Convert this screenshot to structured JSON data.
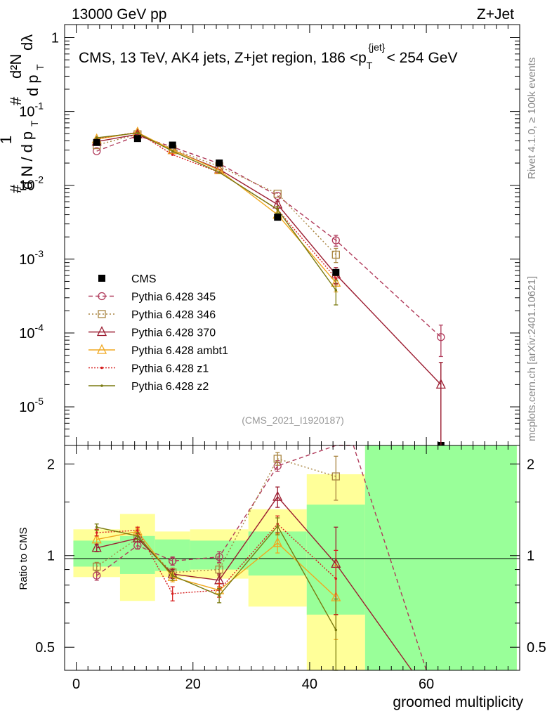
{
  "header": {
    "left_title": "13000 GeV pp",
    "right_title": "Z+Jet",
    "plot_title_main": "CMS, 13 TeV, AK4 jets, Z+jet region, 186 <p",
    "plot_title_sub": "T",
    "plot_title_sup": "{jet}",
    "plot_title_end": "< 254 GeV",
    "side_label_top": "Rivet 4.1.0, ≥ 100k events",
    "side_label_bottom": "mcplots.cern.ch [arXiv:2401.10621]",
    "analysis_id": "(CMS_2021_I1920187)"
  },
  "colors": {
    "cms": "#000000",
    "p345": "#b03a5a",
    "p346": "#a88440",
    "p370": "#9b1c30",
    "ambt1": "#f0a820",
    "z1": "#d62020",
    "z2": "#7a7a10",
    "band_green": "#99ff99",
    "band_yellow": "#ffff99"
  },
  "chart_data": [
    {
      "type": "line",
      "title": "CMS, 13 TeV, AK4 jets, Z+jet region, 186 < pT{jet} < 254 GeV",
      "ylabel": "1/dN/dpT # d²N/dpT dλ",
      "yscale": "log",
      "xlim": [
        -2,
        76
      ],
      "ylim": [
        3e-06,
        1.5
      ],
      "y_ticks": [
        {
          "v": 1e-05,
          "base": "10",
          "exp": "-5"
        },
        {
          "v": 0.0001,
          "base": "10",
          "exp": "-4"
        },
        {
          "v": 0.001,
          "base": "10",
          "exp": "-3"
        },
        {
          "v": 0.01,
          "base": "10",
          "exp": "-2"
        },
        {
          "v": 0.1,
          "base": "10",
          "exp": "-1"
        },
        {
          "v": 1,
          "base": "1",
          "exp": ""
        }
      ],
      "ylabel_parts": {
        "one": "1",
        "dN": "d N / d p",
        "T": "T",
        "hash": "#",
        "d2N": "d²N",
        "dpT": "d p",
        "dlambda": "dλ"
      },
      "cms": {
        "name": "CMS",
        "x": [
          3.5,
          10.5,
          16.5,
          24.5,
          34.5,
          44.5,
          62.5
        ],
        "y": [
          0.038,
          0.043,
          0.035,
          0.02,
          0.0037,
          0.00066,
          2.5e-06
        ]
      },
      "series": [
        {
          "name": "Pythia 6.428 345",
          "key": "p345",
          "marker": "circle",
          "dash": "6,4",
          "x": [
            3.5,
            10.5,
            16.5,
            24.5,
            34.5,
            44.5,
            62.5
          ],
          "y": [
            0.029,
            0.047,
            0.033,
            0.0197,
            0.0072,
            0.0018,
            8.8e-05
          ],
          "err": [
            0,
            0,
            0,
            0,
            0,
            0.0003,
            4e-05
          ]
        },
        {
          "name": "Pythia 6.428 346",
          "key": "p346",
          "marker": "square",
          "dash": "2,3",
          "x": [
            3.5,
            10.5,
            16.5,
            24.5,
            34.5,
            44.5
          ],
          "y": [
            0.035,
            0.049,
            0.031,
            0.018,
            0.0077,
            0.00115
          ],
          "err": [
            0,
            0,
            0,
            0,
            0,
            0.00025
          ]
        },
        {
          "name": "Pythia 6.428 370",
          "key": "p370",
          "marker": "triangle",
          "dash": "",
          "x": [
            3.5,
            10.5,
            16.5,
            24.5,
            34.5,
            44.5,
            62.5
          ],
          "y": [
            0.039,
            0.049,
            0.03,
            0.0165,
            0.0055,
            0.00062,
            2e-05
          ],
          "err": [
            0,
            0,
            0,
            0,
            0.0006,
            0.00015,
            2e-05
          ]
        },
        {
          "name": "Pythia 6.428 ambt1",
          "key": "ambt1",
          "marker": "triangle",
          "dash": "",
          "x": [
            3.5,
            10.5,
            16.5,
            24.5,
            34.5,
            44.5
          ],
          "y": [
            0.042,
            0.052,
            0.03,
            0.016,
            0.004,
            0.00048
          ],
          "err": [
            0,
            0,
            0,
            0,
            0,
            0.00012
          ]
        },
        {
          "name": "Pythia 6.428 z1",
          "key": "z1",
          "marker": "dot",
          "dash": "2,2",
          "x": [
            3.5,
            10.5,
            16.5,
            24.5,
            34.5,
            44.5
          ],
          "y": [
            0.043,
            0.052,
            0.026,
            0.015,
            0.0047,
            0.00055
          ],
          "err": [
            0,
            0,
            0,
            0,
            0,
            0.0001
          ]
        },
        {
          "name": "Pythia 6.428 z2",
          "key": "z2",
          "marker": "dot",
          "dash": "",
          "x": [
            3.5,
            10.5,
            16.5,
            24.5,
            34.5,
            44.5
          ],
          "y": [
            0.044,
            0.051,
            0.029,
            0.015,
            0.0047,
            0.00038
          ],
          "err": [
            0,
            0,
            0,
            0,
            0.0005,
            0.00014
          ]
        }
      ]
    },
    {
      "type": "line",
      "ylabel": "Ratio to CMS",
      "xlabel": "groomed multiplicity",
      "xlim": [
        -2,
        76
      ],
      "ylim": [
        0.42,
        2.3
      ],
      "yscale": "log",
      "x_ticks": [
        0,
        20,
        40,
        60
      ],
      "y_ticks": [
        0.5,
        1,
        2
      ],
      "bands": [
        {
          "x0": -0.5,
          "x1": 7.5,
          "green": [
            0.92,
            1.12
          ],
          "yellow": [
            0.85,
            1.22
          ]
        },
        {
          "x0": 7.5,
          "x1": 13.5,
          "green": [
            0.87,
            1.16
          ],
          "yellow": [
            0.71,
            1.37
          ]
        },
        {
          "x0": 13.5,
          "x1": 19.5,
          "green": [
            0.89,
            1.13
          ],
          "yellow": [
            0.85,
            1.2
          ]
        },
        {
          "x0": 19.5,
          "x1": 29.5,
          "green": [
            0.9,
            1.12
          ],
          "yellow": [
            0.84,
            1.22
          ]
        },
        {
          "x0": 29.5,
          "x1": 39.5,
          "green": [
            0.86,
            1.2
          ],
          "yellow": [
            0.68,
            1.42
          ]
        },
        {
          "x0": 39.5,
          "x1": 49.5,
          "green": [
            0.64,
            1.47
          ],
          "yellow": [
            0.42,
            1.85
          ]
        },
        {
          "x0": 49.5,
          "x1": 75.5,
          "green": [
            0.42,
            2.3
          ],
          "yellow": [
            0.42,
            2.3
          ]
        }
      ],
      "series": [
        {
          "name": "Pythia 6.428 345",
          "key": "p345",
          "x": [
            3.5,
            10.5,
            16.5,
            24.5,
            34.5,
            44.5,
            47.5,
            60.0
          ],
          "y": [
            0.86,
            1.08,
            0.96,
            0.99,
            1.97,
            2.35,
            2.35,
            0.42
          ],
          "err": [
            0.03,
            0.03,
            0.03,
            0.04,
            0.08,
            0,
            0,
            0
          ]
        },
        {
          "name": "Pythia 6.428 346",
          "key": "p346",
          "x": [
            3.5,
            10.5,
            16.5,
            24.5,
            34.5,
            44.5
          ],
          "y": [
            0.92,
            1.14,
            0.88,
            0.9,
            2.08,
            1.82
          ],
          "err": [
            0.03,
            0.03,
            0.03,
            0.04,
            0.1,
            0.3
          ]
        },
        {
          "name": "Pythia 6.428 370",
          "key": "p370",
          "x": [
            3.5,
            10.5,
            16.5,
            24.5,
            34.5,
            44.5,
            57.5
          ],
          "y": [
            1.06,
            1.14,
            0.87,
            0.83,
            1.56,
            0.94,
            0.42
          ],
          "err": [
            0.03,
            0.03,
            0.03,
            0.04,
            0.12,
            0.3,
            0
          ]
        },
        {
          "name": "Pythia 6.428 ambt1",
          "key": "ambt1",
          "x": [
            3.5,
            10.5,
            16.5,
            24.5,
            34.5,
            44.5
          ],
          "y": [
            1.13,
            1.2,
            0.85,
            0.77,
            1.1,
            0.73
          ],
          "err": [
            0.03,
            0.03,
            0.03,
            0.04,
            0.08,
            0.2
          ]
        },
        {
          "name": "Pythia 6.428 z1",
          "key": "z1",
          "x": [
            3.5,
            10.5,
            16.5,
            24.5,
            34.5,
            44.5
          ],
          "y": [
            1.19,
            1.21,
            0.75,
            0.77,
            1.27,
            0.84
          ],
          "err": [
            0.03,
            0.03,
            0.04,
            0.04,
            0.08,
            0.2
          ]
        },
        {
          "name": "Pythia 6.428 z2",
          "key": "z2",
          "x": [
            3.5,
            10.5,
            16.5,
            24.5,
            34.5,
            44.5
          ],
          "y": [
            1.24,
            1.16,
            0.86,
            0.74,
            1.25,
            0.57
          ],
          "err": [
            0.03,
            0.03,
            0.03,
            0.04,
            0.08,
            0.15
          ]
        }
      ]
    }
  ]
}
